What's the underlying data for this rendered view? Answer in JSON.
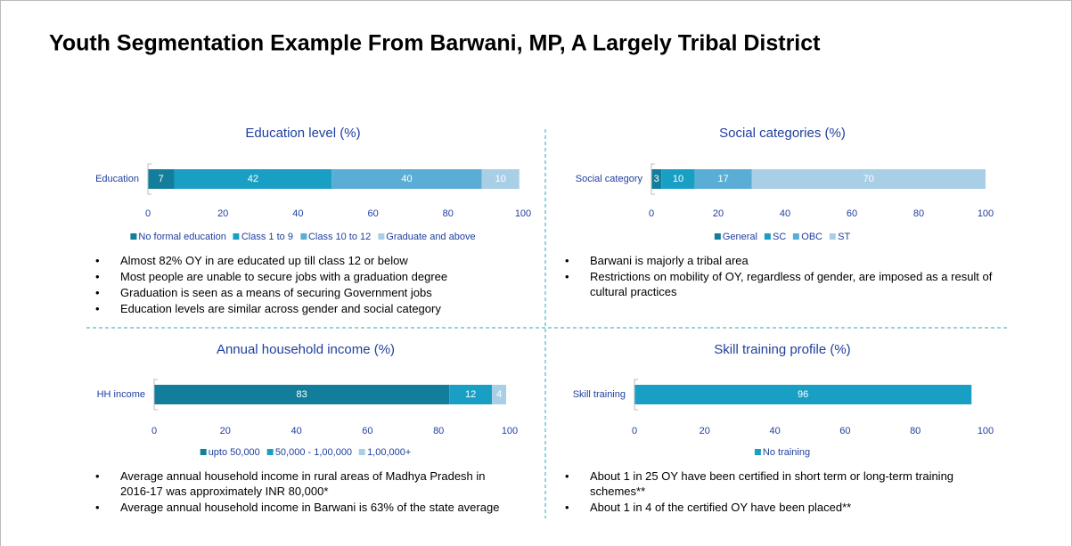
{
  "title": "Youth Segmentation Example From Barwani, MP, A Largely Tribal District",
  "chart_data": [
    {
      "type": "bar",
      "title": "Education level (%)",
      "categories": [
        "Education"
      ],
      "series": [
        {
          "name": "No formal education",
          "color": "#137e9b",
          "values": [
            7
          ]
        },
        {
          "name": "Class 1 to 9",
          "color": "#1a9fc4",
          "values": [
            42
          ]
        },
        {
          "name": "Class 10 to 12",
          "color": "#5aadd4",
          "values": [
            40
          ]
        },
        {
          "name": "Graduate and above",
          "color": "#a9cfe6",
          "values": [
            10
          ]
        }
      ],
      "xlim": [
        0,
        100
      ],
      "xticks": [
        0,
        20,
        40,
        60,
        80,
        100
      ],
      "notes": [
        "Almost 82% OY in are educated up till class 12 or below",
        "Most people are unable to secure jobs with a graduation degree",
        "Graduation is seen as a means of securing Government jobs",
        "Education levels are similar across gender and social category"
      ]
    },
    {
      "type": "bar",
      "title": "Social categories (%)",
      "categories": [
        "Social category"
      ],
      "series": [
        {
          "name": "General",
          "color": "#137e9b",
          "values": [
            3
          ]
        },
        {
          "name": "SC",
          "color": "#1a9fc4",
          "values": [
            10
          ]
        },
        {
          "name": "OBC",
          "color": "#5aadd4",
          "values": [
            17
          ]
        },
        {
          "name": "ST",
          "color": "#a9cfe6",
          "values": [
            70
          ]
        }
      ],
      "xlim": [
        0,
        100
      ],
      "xticks": [
        0,
        20,
        40,
        60,
        80,
        100
      ],
      "notes": [
        "Barwani is majorly a tribal area",
        "Restrictions on mobility of OY, regardless of gender, are imposed as a result of cultural practices"
      ]
    },
    {
      "type": "bar",
      "title": "Annual household income (%)",
      "categories": [
        "HH income"
      ],
      "series": [
        {
          "name": "upto 50,000",
          "color": "#137e9b",
          "values": [
            83
          ]
        },
        {
          "name": "50,000 - 1,00,000",
          "color": "#1a9fc4",
          "values": [
            12
          ]
        },
        {
          "name": "1,00,000+",
          "color": "#a9cfe6",
          "values": [
            4
          ]
        }
      ],
      "xlim": [
        0,
        100
      ],
      "xticks": [
        0,
        20,
        40,
        60,
        80,
        100
      ],
      "notes": [
        "Average annual household income in rural areas of Madhya Pradesh in 2016-17 was approximately INR 80,000*",
        "Average annual household income in Barwani is 63% of the state average"
      ]
    },
    {
      "type": "bar",
      "title": "Skill training profile (%)",
      "categories": [
        "Skill training"
      ],
      "series": [
        {
          "name": "No training",
          "color": "#1a9fc4",
          "values": [
            96
          ]
        }
      ],
      "xlim": [
        0,
        100
      ],
      "xticks": [
        0,
        20,
        40,
        60,
        80,
        100
      ],
      "notes": [
        "About 1 in 25 OY have been certified in short term or long-term training schemes**",
        "About 1 in 4 of the certified OY have been placed**"
      ]
    }
  ]
}
